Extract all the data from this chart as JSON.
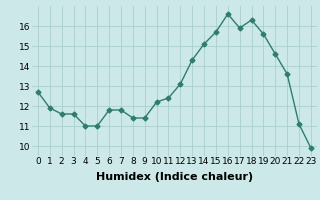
{
  "x": [
    0,
    1,
    2,
    3,
    4,
    5,
    6,
    7,
    8,
    9,
    10,
    11,
    12,
    13,
    14,
    15,
    16,
    17,
    18,
    19,
    20,
    21,
    22,
    23
  ],
  "y": [
    12.7,
    11.9,
    11.6,
    11.6,
    11.0,
    11.0,
    11.8,
    11.8,
    11.4,
    11.4,
    12.2,
    12.4,
    13.1,
    14.3,
    15.1,
    15.7,
    16.6,
    15.9,
    16.3,
    15.6,
    14.6,
    13.6,
    11.1,
    9.9
  ],
  "line_color": "#2e7d6e",
  "marker": "D",
  "markersize": 2.5,
  "linewidth": 1.0,
  "xlabel": "Humidex (Indice chaleur)",
  "xlim": [
    -0.5,
    23.5
  ],
  "ylim": [
    9.5,
    17.0
  ],
  "yticks": [
    10,
    11,
    12,
    13,
    14,
    15,
    16
  ],
  "xtick_labels": [
    "0",
    "1",
    "2",
    "3",
    "4",
    "5",
    "6",
    "7",
    "8",
    "9",
    "10",
    "11",
    "12",
    "13",
    "14",
    "15",
    "16",
    "17",
    "18",
    "19",
    "20",
    "21",
    "22",
    "23"
  ],
  "bg_color": "#cde8e8",
  "grid_color": "#aacfcf",
  "tick_fontsize": 6.5,
  "xlabel_fontsize": 8
}
